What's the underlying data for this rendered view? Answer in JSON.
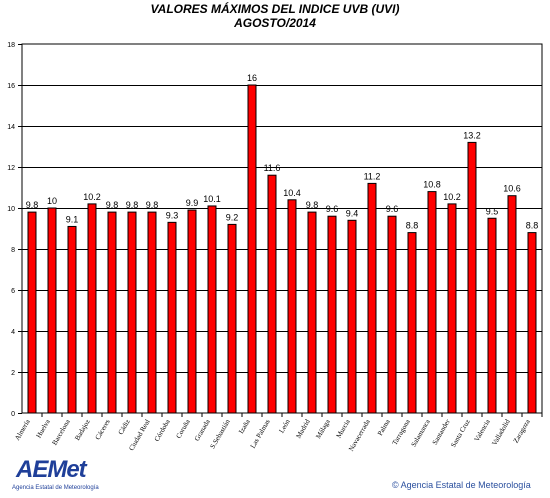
{
  "header": {
    "title_line1": "VALORES MÁXIMOS DEL INDICE UVB (UVI)",
    "title_line2": "AGOSTO/2014"
  },
  "footer": {
    "logo_word": "AEMet",
    "logo_subtitle": "Agencia Estatal de Meteorología",
    "credit": "© Agencia Estatal de Meteorología"
  },
  "chart_data": {
    "type": "bar",
    "title": "VALORES MÁXIMOS DEL INDICE UVB (UVI) AGOSTO/2014",
    "xlabel": "",
    "ylabel": "",
    "ylim": [
      0,
      18
    ],
    "yticks": [
      0,
      2,
      4,
      6,
      8,
      10,
      12,
      14,
      16,
      18
    ],
    "grid": "horizontal",
    "bar_color": "#ff0000",
    "categories": [
      "Almería",
      "Huelva",
      "Barcelona",
      "Badajoz",
      "Cáceres",
      "Cádiz",
      "Ciudad Real",
      "Córdoba",
      "Coruña",
      "Granada",
      "S.Sebastián",
      "Izaña",
      "Las Palmas",
      "León",
      "Madrid",
      "Málaga",
      "Murcia",
      "Navacerrada",
      "Palma",
      "Tarragona",
      "Salamanca",
      "Santander",
      "Santa Cruz",
      "Valencia",
      "Valladolid",
      "Zaragoza"
    ],
    "values": [
      9.8,
      10,
      9.1,
      10.2,
      9.8,
      9.8,
      9.8,
      9.3,
      9.9,
      10.1,
      9.2,
      16,
      11.6,
      10.4,
      9.8,
      9.6,
      9.4,
      11.2,
      9.6,
      8.8,
      10.8,
      10.2,
      13.2,
      9.5,
      10.6,
      8.8
    ],
    "labels": [
      "9.8",
      "10",
      "9.1",
      "10.2",
      "9.8",
      "9.8",
      "9.8",
      "9.3",
      "9.9",
      "10.1",
      "9.2",
      "16",
      "11.6",
      "10.4",
      "9.8",
      "9.6",
      "9.4",
      "11.2",
      "9.6",
      "8.8",
      "10.8",
      "10.2",
      "13.2",
      "9.5",
      "10.6",
      "8.8"
    ]
  }
}
